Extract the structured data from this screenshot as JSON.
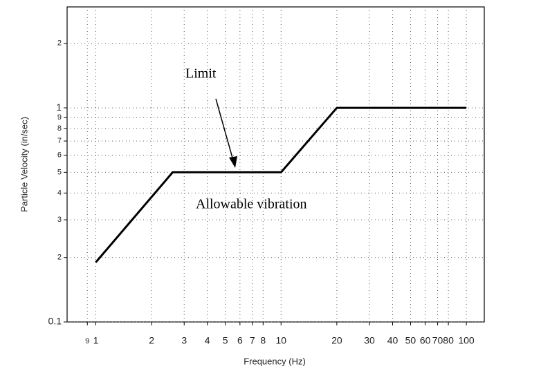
{
  "chart_data": {
    "type": "line",
    "xlabel": "Frequency (Hz)",
    "ylabel": "Particle Velocity (in/sec)",
    "xscale": "log",
    "yscale": "log",
    "grid": true,
    "xlim": [
      0.7,
      125
    ],
    "ylim": [
      0.1,
      2.96
    ],
    "xticks": [
      {
        "value": 0.9,
        "label": "9"
      },
      1,
      2,
      3,
      4,
      5,
      6,
      7,
      8,
      10,
      20,
      30,
      40,
      50,
      60,
      70,
      80,
      100
    ],
    "yticks": [
      0.1,
      {
        "value": 0.2,
        "label": "2"
      },
      {
        "value": 0.3,
        "label": "3"
      },
      {
        "value": 0.4,
        "label": "4"
      },
      {
        "value": 0.5,
        "label": "5"
      },
      {
        "value": 0.6,
        "label": "6"
      },
      {
        "value": 0.7,
        "label": "7"
      },
      {
        "value": 0.8,
        "label": "8"
      },
      {
        "value": 0.9,
        "label": "9"
      },
      1,
      {
        "value": 2,
        "label": "2"
      }
    ],
    "x": [
      1,
      2.6,
      10,
      20,
      100
    ],
    "series": [
      {
        "name": "Limit",
        "color": "#000000",
        "values": [
          0.19,
          0.5,
          0.5,
          1,
          1
        ]
      }
    ],
    "annotations": [
      "Limit",
      "Allowable vibration"
    ]
  }
}
